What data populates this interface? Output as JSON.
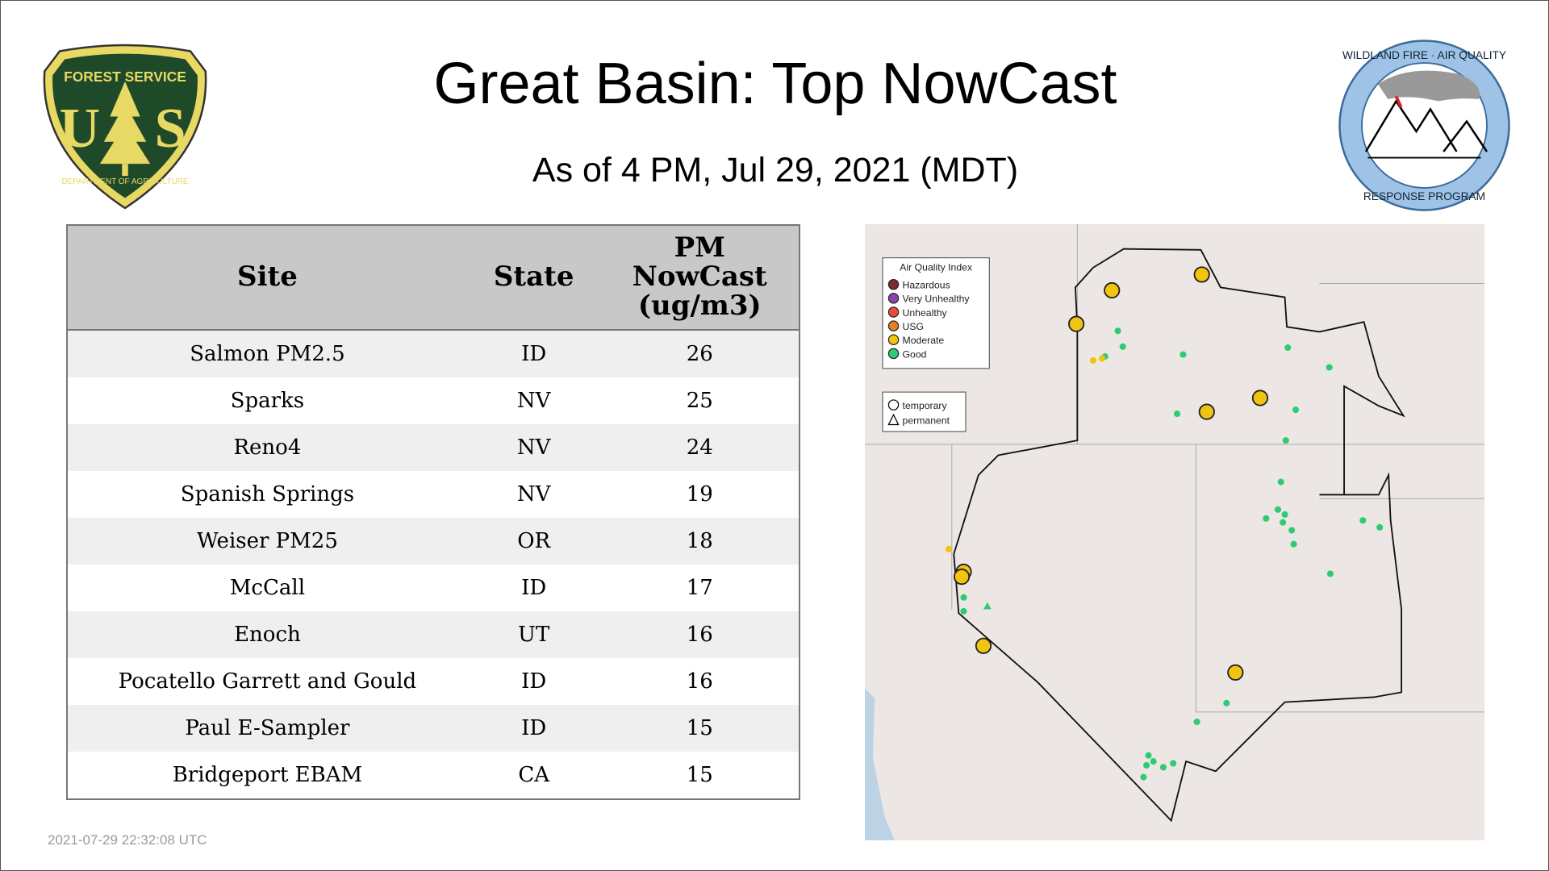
{
  "header": {
    "title": "Great Basin: Top NowCast",
    "subtitle": "As of  4 PM, Jul 29, 2021 (MDT)"
  },
  "logos": {
    "left": {
      "name": "forest-service-logo",
      "text": [
        "FOREST SERVICE",
        "U",
        "S",
        "DEPARTMENT OF AGRICULTURE"
      ]
    },
    "right": {
      "name": "wildland-fire-air-quality-logo",
      "text": [
        "WILDLAND FIRE · AIR QUALITY",
        "RESPONSE PROGRAM"
      ]
    }
  },
  "table": {
    "columns": [
      "Site",
      "State",
      "PM NowCast (ug/m3)"
    ],
    "column_lines": [
      [
        "Site"
      ],
      [
        "State"
      ],
      [
        "PM",
        "NowCast",
        "(ug/m3)"
      ]
    ],
    "rows": [
      [
        "Salmon PM2.5",
        "ID",
        "26"
      ],
      [
        "Sparks",
        "NV",
        "25"
      ],
      [
        "Reno4",
        "NV",
        "24"
      ],
      [
        "Spanish Springs",
        "NV",
        "19"
      ],
      [
        "Weiser PM25",
        "OR",
        "18"
      ],
      [
        "McCall",
        "ID",
        "17"
      ],
      [
        "Enoch",
        "UT",
        "16"
      ],
      [
        "Pocatello Garrett and Gould",
        "ID",
        "16"
      ],
      [
        "Paul E-Sampler",
        "ID",
        "15"
      ],
      [
        "Bridgeport EBAM",
        "CA",
        "15"
      ]
    ]
  },
  "map": {
    "legend": {
      "title": "Air Quality Index",
      "items": [
        {
          "label": "Hazardous",
          "color": "#7e2c2c"
        },
        {
          "label": "Very Unhealthy",
          "color": "#8e44ad"
        },
        {
          "label": "Unhealthy",
          "color": "#e74c3c"
        },
        {
          "label": "USG",
          "color": "#e67e22"
        },
        {
          "label": "Moderate",
          "color": "#f1c40f"
        },
        {
          "label": "Good",
          "color": "#2ecc71"
        }
      ]
    },
    "shape_legend": {
      "items": [
        {
          "label": "temporary",
          "shape": "circle"
        },
        {
          "label": "permanent",
          "shape": "triangle"
        }
      ]
    }
  },
  "footer": {
    "timestamp": "2021-07-29 22:32:08 UTC"
  }
}
